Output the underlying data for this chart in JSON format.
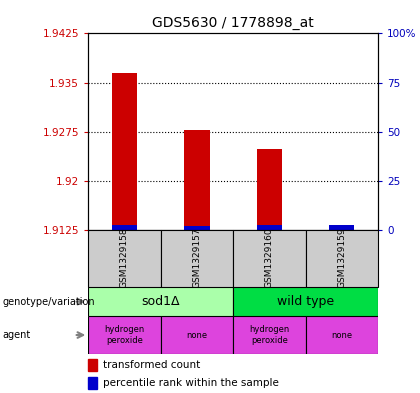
{
  "title": "GDS5630 / 1778898_at",
  "samples": [
    "GSM1329158",
    "GSM1329157",
    "GSM1329160",
    "GSM1329159"
  ],
  "red_values": [
    1.9365,
    1.9278,
    1.9248,
    1.9128
  ],
  "blue_values": [
    1.9133,
    1.9131,
    1.9132,
    1.9132
  ],
  "y_min": 1.9125,
  "y_max": 1.9425,
  "y_ticks_left": [
    1.9125,
    1.92,
    1.9275,
    1.935,
    1.9425
  ],
  "y_ticks_right": [
    0,
    25,
    50,
    75,
    100
  ],
  "dotted_lines": [
    1.935,
    1.9275,
    1.92
  ],
  "bar_width": 0.35,
  "genotype_groups": [
    {
      "label": "sod1Δ",
      "cols": [
        0,
        1
      ],
      "color": "#AAFFAA"
    },
    {
      "label": "wild type",
      "cols": [
        2,
        3
      ],
      "color": "#00DD44"
    }
  ],
  "agent_groups": [
    {
      "label": "hydrogen\nperoxide",
      "col": 0,
      "color": "#EE44EE"
    },
    {
      "label": "none",
      "col": 1,
      "color": "#EE44EE"
    },
    {
      "label": "hydrogen\nperoxide",
      "col": 2,
      "color": "#EE44EE"
    },
    {
      "label": "none",
      "col": 3,
      "color": "#EE44EE"
    }
  ],
  "legend_items": [
    {
      "color": "#CC0000",
      "label": "transformed count"
    },
    {
      "color": "#0000CC",
      "label": "percentile rank within the sample"
    }
  ],
  "left_label_color": "#CC0000",
  "right_label_color": "#0000BB",
  "sample_box_color": "#CCCCCC",
  "geno_colors": [
    "#AAFFAA",
    "#00DD44"
  ],
  "agent_color": "#DD44DD"
}
